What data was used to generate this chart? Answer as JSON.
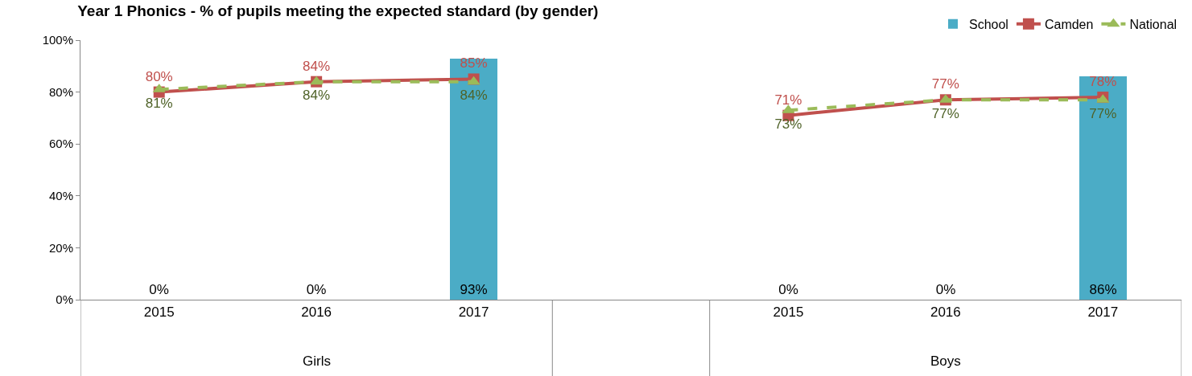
{
  "chart_data": {
    "type": "bar",
    "title": "Year 1 Phonics - % of pupils meeting the expected standard (by gender)",
    "categories": [
      "2015",
      "2016",
      "2017",
      null,
      "2015",
      "2016",
      "2017"
    ],
    "annotations": [
      "Girls",
      "Boys"
    ],
    "series": [
      {
        "name": "School",
        "color": "#4bacc6",
        "values": [
          0,
          0,
          93,
          null,
          0,
          0,
          86
        ],
        "value_labels": [
          "0%",
          "0%",
          "93%",
          null,
          "0%",
          "0%",
          "86%"
        ]
      },
      {
        "name": "Camden",
        "type": "line",
        "color": "#c0504d",
        "marker": "square",
        "line_style": "solid",
        "values": [
          80,
          84,
          85,
          null,
          71,
          77,
          78
        ],
        "value_labels": [
          "80%",
          "84%",
          "85%",
          null,
          "71%",
          "77%",
          "78%"
        ]
      },
      {
        "name": "National",
        "type": "line",
        "color": "#9bbb59",
        "marker": "triangle",
        "line_style": "dashed",
        "values": [
          81,
          84,
          84,
          null,
          73,
          77,
          77
        ],
        "value_labels": [
          "81%",
          "84%",
          "84%",
          null,
          "73%",
          "77%",
          "77%"
        ]
      }
    ],
    "ylim": [
      0,
      100
    ],
    "yticks": [
      {
        "value": 0,
        "label": "0%"
      },
      {
        "value": 20,
        "label": "20%"
      },
      {
        "value": 40,
        "label": "40%"
      },
      {
        "value": 60,
        "label": "60%"
      },
      {
        "value": 80,
        "label": "80%"
      },
      {
        "value": 100,
        "label": "100%"
      }
    ],
    "legend": "top right"
  }
}
